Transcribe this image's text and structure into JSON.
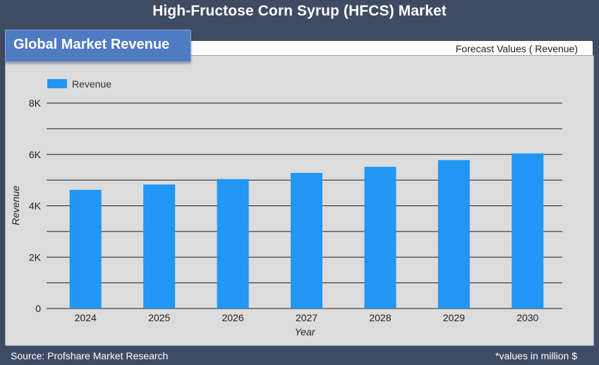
{
  "page": {
    "title": "High-Fructose Corn Syrup (HFCS) Market",
    "section_label": "Global Market Revenue",
    "forecast_label": "Forecast Values ( Revenue)",
    "source": "Source: Profshare Market Research",
    "note": "*values in million $"
  },
  "colors": {
    "background": "#3f4b63",
    "panel": "#dcdcdc",
    "bar": "#2196f3",
    "section_tab": "#4f7bc2"
  },
  "chart_data": {
    "type": "bar",
    "categories": [
      "2024",
      "2025",
      "2026",
      "2027",
      "2028",
      "2029",
      "2030"
    ],
    "series": [
      {
        "name": "Revenue",
        "values": [
          4620,
          4830,
          5040,
          5280,
          5520,
          5780,
          6040
        ]
      }
    ],
    "xlabel": "Year",
    "ylabel": "Revenue",
    "ylim": [
      0,
      8000
    ],
    "yticks": [
      0,
      2000,
      4000,
      6000,
      8000
    ],
    "ytick_labels": [
      "0",
      "2K",
      "4K",
      "6K",
      "8K"
    ],
    "grid": true,
    "gridline_step": 1000,
    "legend": "top-left"
  }
}
